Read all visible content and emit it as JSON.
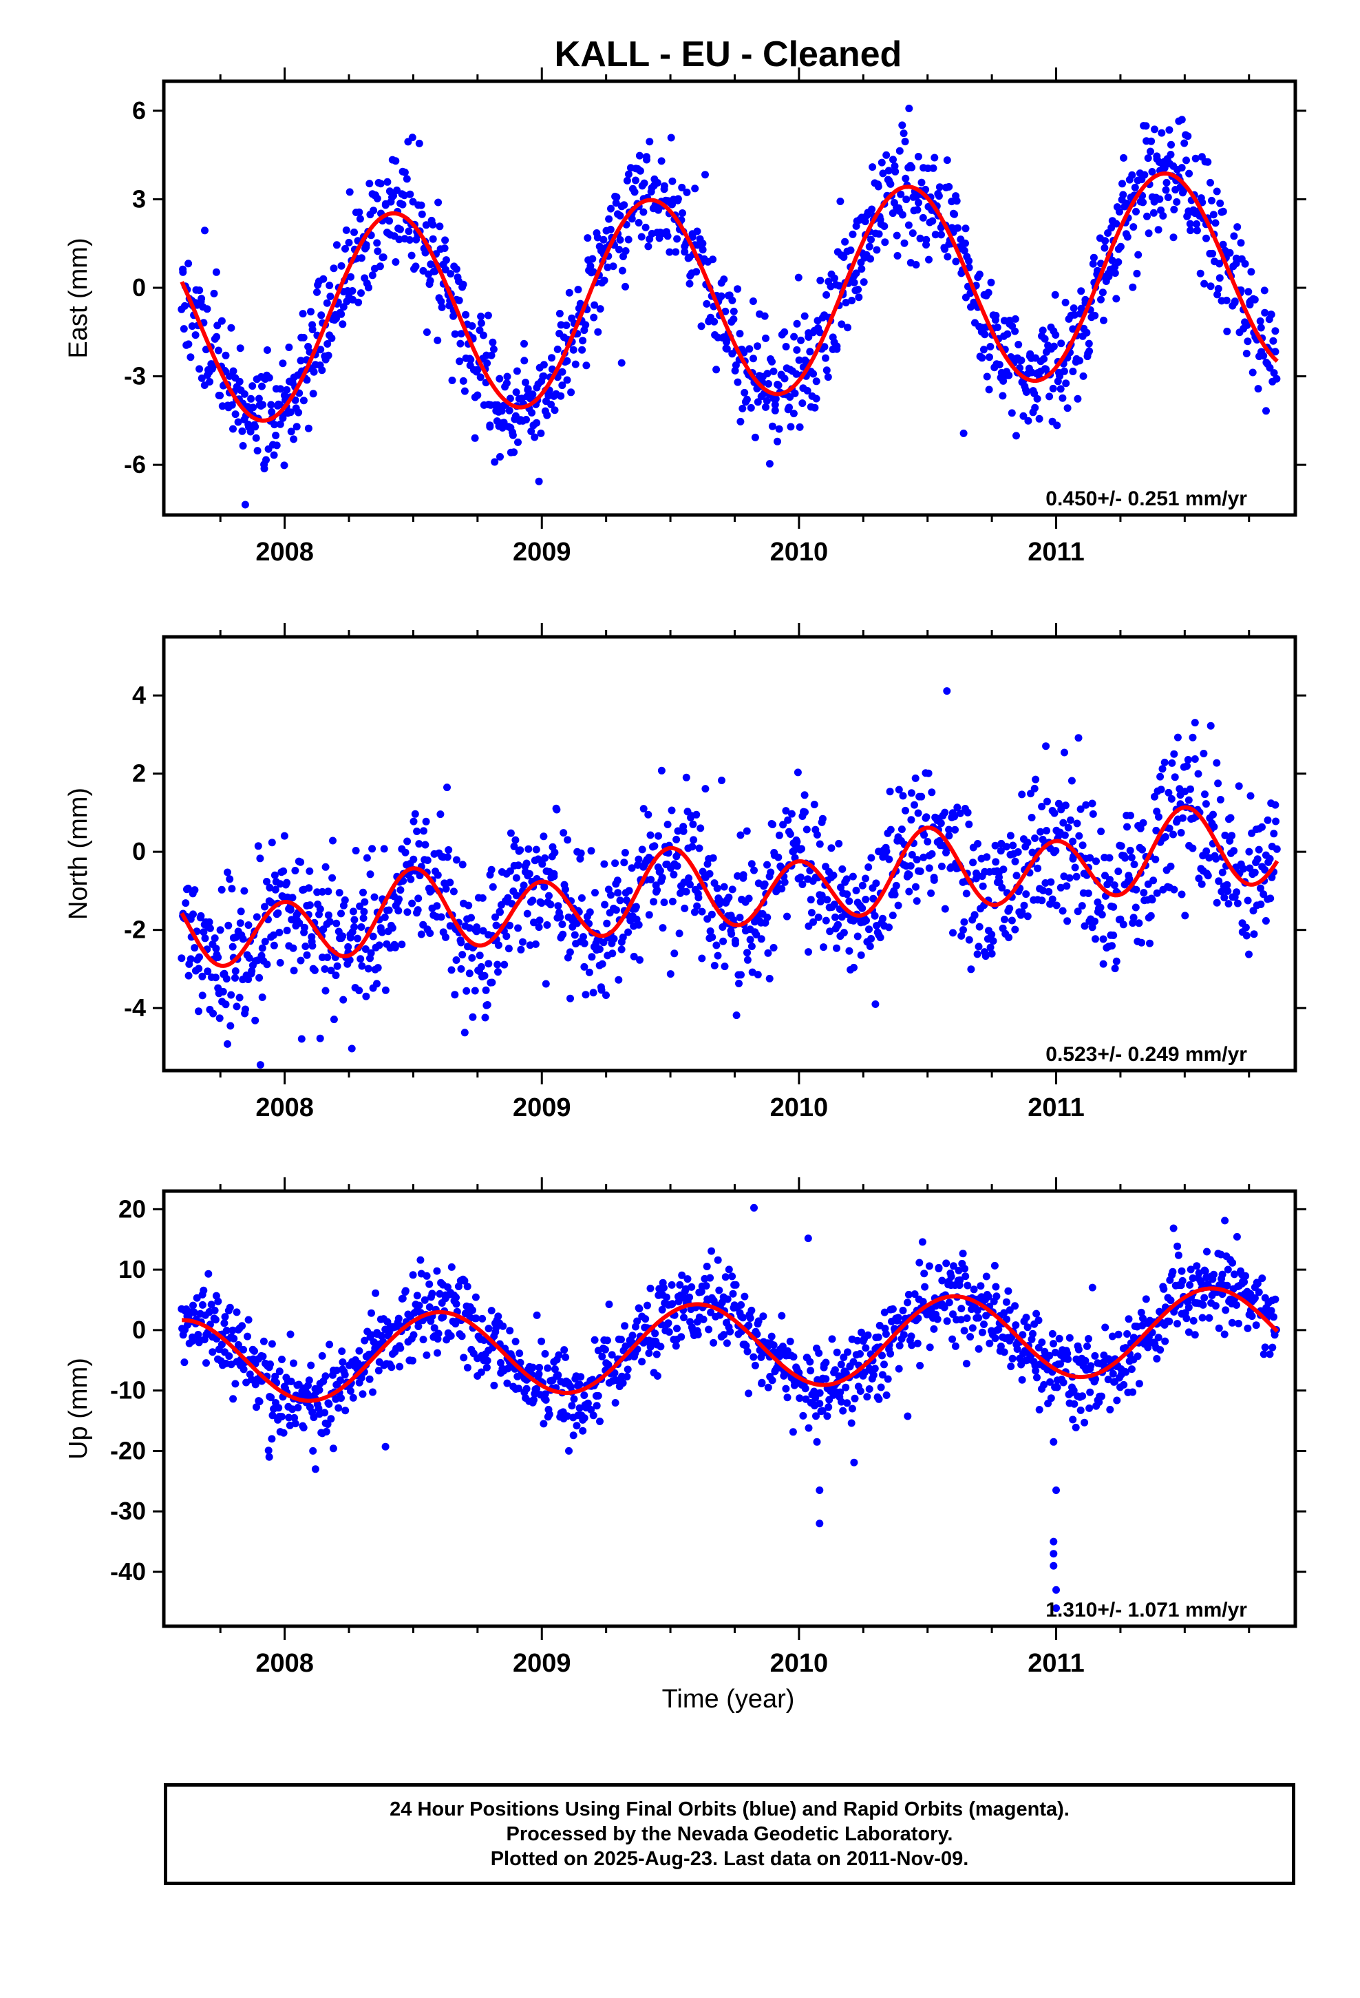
{
  "chart_data": [
    {
      "type": "scatter",
      "title": "KALL  - EU - Cleaned",
      "xlabel": "",
      "ylabel": "East (mm)",
      "xlim": [
        2007.53,
        2011.93
      ],
      "ylim": [
        -7.7,
        7.0
      ],
      "x_ticks": [
        2008,
        2009,
        2010,
        2011
      ],
      "y_ticks": [
        -6,
        -3,
        0,
        3,
        6
      ],
      "rate_label": "0.450+/- 0.251 mm/yr",
      "model": {
        "start": 2007.6,
        "end": 2011.86,
        "offset": -0.3,
        "trend": 0.45,
        "annual_amp": 3.4,
        "annual_peak": 2008.42,
        "semi_amp": 0.0,
        "semi_phase": 0.0
      },
      "scatter": {
        "spread": 1.0,
        "points_per_year": 330,
        "seed": 11,
        "outlier_prob": 0.02
      },
      "series": [
        {
          "name": "Final Orbits",
          "color": "#0000ff",
          "role": "points"
        },
        {
          "name": "Fit",
          "color": "#ff0000",
          "role": "model"
        }
      ]
    },
    {
      "type": "scatter",
      "title": "",
      "xlabel": "",
      "ylabel": "North (mm)",
      "xlim": [
        2007.53,
        2011.93
      ],
      "ylim": [
        -5.6,
        5.5
      ],
      "x_ticks": [
        2008,
        2009,
        2010,
        2011
      ],
      "y_ticks": [
        -4,
        -2,
        0,
        2,
        4
      ],
      "rate_label": "0.523+/- 0.249 mm/yr",
      "model": {
        "start": 2007.6,
        "end": 2011.86,
        "offset": -1.0,
        "trend": 0.52,
        "annual_amp": 0.3,
        "annual_peak": 2008.5,
        "semi_amp": 0.9,
        "semi_phase": 2008.0
      },
      "scatter": {
        "spread": 0.9,
        "points_per_year": 330,
        "seed": 23,
        "outlier_prob": 0.02
      },
      "series": [
        {
          "name": "Final Orbits",
          "color": "#0000ff",
          "role": "points"
        },
        {
          "name": "Fit",
          "color": "#ff0000",
          "role": "model"
        }
      ]
    },
    {
      "type": "scatter",
      "title": "",
      "xlabel": "Time (year)",
      "ylabel": "Up (mm)",
      "xlim": [
        2007.53,
        2011.93
      ],
      "ylim": [
        -49,
        23
      ],
      "x_ticks": [
        2008,
        2009,
        2010,
        2011
      ],
      "y_ticks": [
        -40,
        -30,
        -20,
        -10,
        0,
        10,
        20
      ],
      "rate_label": "1.310+/- 1.071 mm/yr",
      "model": {
        "start": 2007.6,
        "end": 2011.86,
        "offset": -2.6,
        "trend": 1.31,
        "annual_amp": 7.0,
        "annual_peak": 2008.6,
        "semi_amp": 0.0,
        "semi_phase": 0.0
      },
      "scatter": {
        "spread": 3.4,
        "points_per_year": 330,
        "seed": 37,
        "outlier_prob": 0.02
      },
      "outliers": [
        {
          "x": 2010.07,
          "y": -18.5
        },
        {
          "x": 2010.08,
          "y": -26.5
        },
        {
          "x": 2010.08,
          "y": -32
        },
        {
          "x": 2010.99,
          "y": -18.5
        },
        {
          "x": 2011.0,
          "y": -26.5
        },
        {
          "x": 2010.99,
          "y": -35
        },
        {
          "x": 2010.99,
          "y": -37
        },
        {
          "x": 2010.99,
          "y": -39
        },
        {
          "x": 2011.0,
          "y": -43
        },
        {
          "x": 2011.0,
          "y": -46
        },
        {
          "x": 2008.12,
          "y": -23
        },
        {
          "x": 2008.11,
          "y": -20
        },
        {
          "x": 2007.94,
          "y": -21
        },
        {
          "x": 2007.95,
          "y": -18
        }
      ],
      "series": [
        {
          "name": "Final Orbits",
          "color": "#0000ff",
          "role": "points"
        },
        {
          "name": "Fit",
          "color": "#ff0000",
          "role": "model"
        }
      ]
    }
  ],
  "footer": {
    "line1": "24 Hour Positions Using Final Orbits (blue) and Rapid Orbits (magenta).",
    "line2": "Processed by the Nevada Geodetic Laboratory.",
    "line3": "Plotted on 2025-Aug-23. Last data on 2011-Nov-09."
  }
}
